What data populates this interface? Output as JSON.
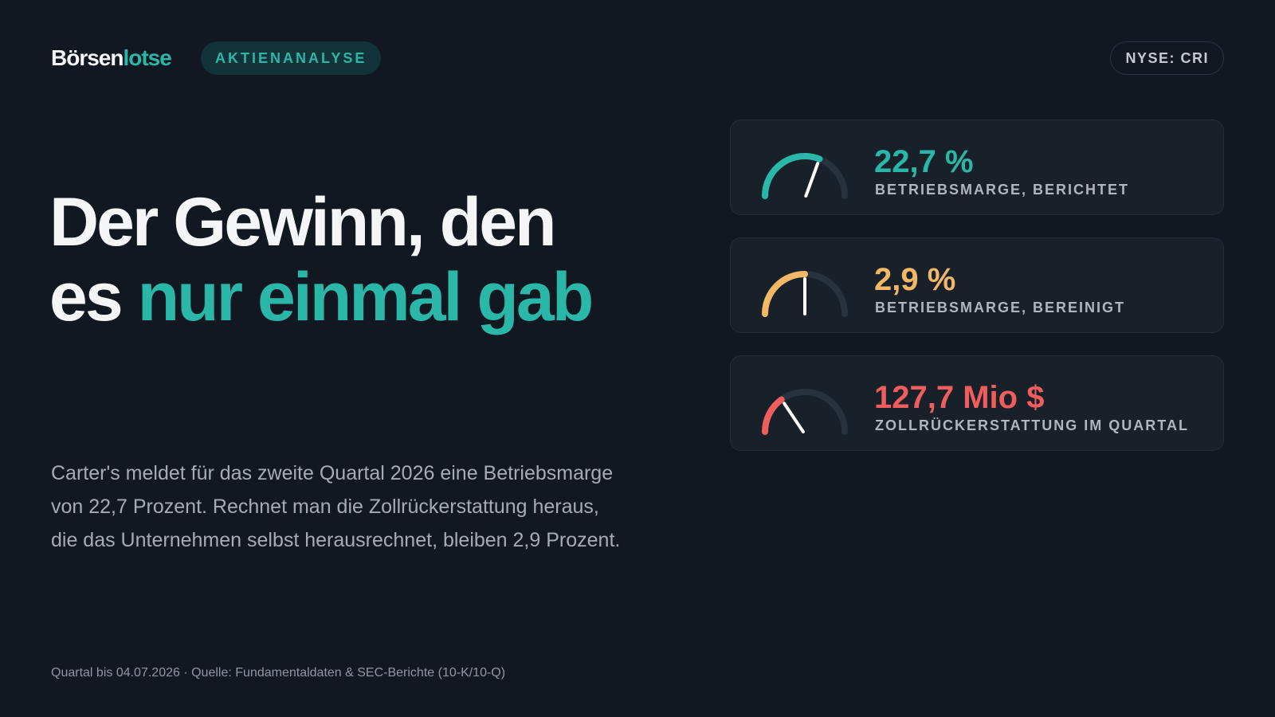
{
  "brand": {
    "name_part1": "Börsen",
    "name_part2": "lotse"
  },
  "tag": "AKTIENANALYSE",
  "ticker": "NYSE: CRI",
  "headline": {
    "line1": "Der Gewinn, den",
    "line2_plain": "es ",
    "line2_accent": "nur einmal gab"
  },
  "body": "Carter's meldet für das zweite Quartal 2026 eine Betriebsmarge von 22,7 Prozent. Rechnet man die Zollrückerstattung heraus, die das Unternehmen selbst herausrechnet, bleiben 2,9 Prozent.",
  "footer": "Quartal bis 04.07.2026 · Quelle: Fundamentaldaten & SEC-Berichte (10-K/10-Q)",
  "colors": {
    "accent": "#2bb7a7",
    "amber": "#f2b866",
    "coral": "#ef5d5d",
    "track": "#28323d"
  },
  "metrics": [
    {
      "value": "22,7 %",
      "label": "BETRIEBSMARGE, BERICHTET",
      "color": "#2bb7a7",
      "level": 0.62
    },
    {
      "value": "2,9 %",
      "label": "BETRIEBSMARGE, BEREINIGT",
      "color": "#f2b866",
      "level": 0.5
    },
    {
      "value": "127,7 Mio $",
      "label": "ZOLLRÜCKERSTATTUNG IM QUARTAL",
      "color": "#ef5d5d",
      "level": 0.3
    }
  ]
}
